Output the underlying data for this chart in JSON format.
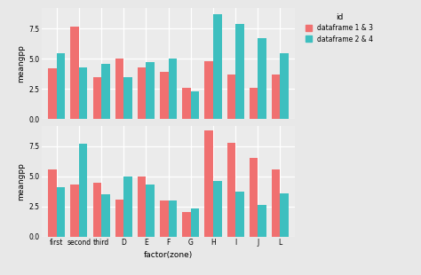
{
  "categories": [
    "first",
    "second",
    "third",
    "D",
    "E",
    "F",
    "G",
    "H",
    "I",
    "J",
    "L"
  ],
  "top_salmon": [
    4.2,
    7.7,
    3.5,
    5.0,
    4.3,
    3.9,
    2.6,
    4.8,
    3.7,
    2.6,
    3.7
  ],
  "top_teal": [
    5.5,
    4.3,
    4.6,
    3.5,
    4.7,
    5.0,
    2.3,
    8.7,
    7.9,
    6.7,
    5.5
  ],
  "bot_salmon": [
    5.6,
    4.3,
    4.5,
    3.1,
    5.0,
    3.0,
    2.0,
    8.8,
    7.8,
    6.5,
    5.6
  ],
  "bot_teal": [
    4.1,
    7.7,
    3.5,
    5.0,
    4.3,
    3.0,
    2.35,
    4.6,
    3.7,
    2.65,
    3.6
  ],
  "salmon_color": "#F07070",
  "teal_color": "#3DBFBF",
  "bg_color": "#E8E8E8",
  "panel_bg": "#EBEBEB",
  "grid_color": "#FFFFFF",
  "xlabel": "factor(zone)",
  "ylabel": "meangpp",
  "legend_labels": [
    "dataframe 1 & 3",
    "dataframe 2 & 4"
  ],
  "legend_title": "id",
  "ylim": [
    0.0,
    9.2
  ],
  "yticks": [
    0.0,
    2.5,
    5.0,
    7.5
  ]
}
